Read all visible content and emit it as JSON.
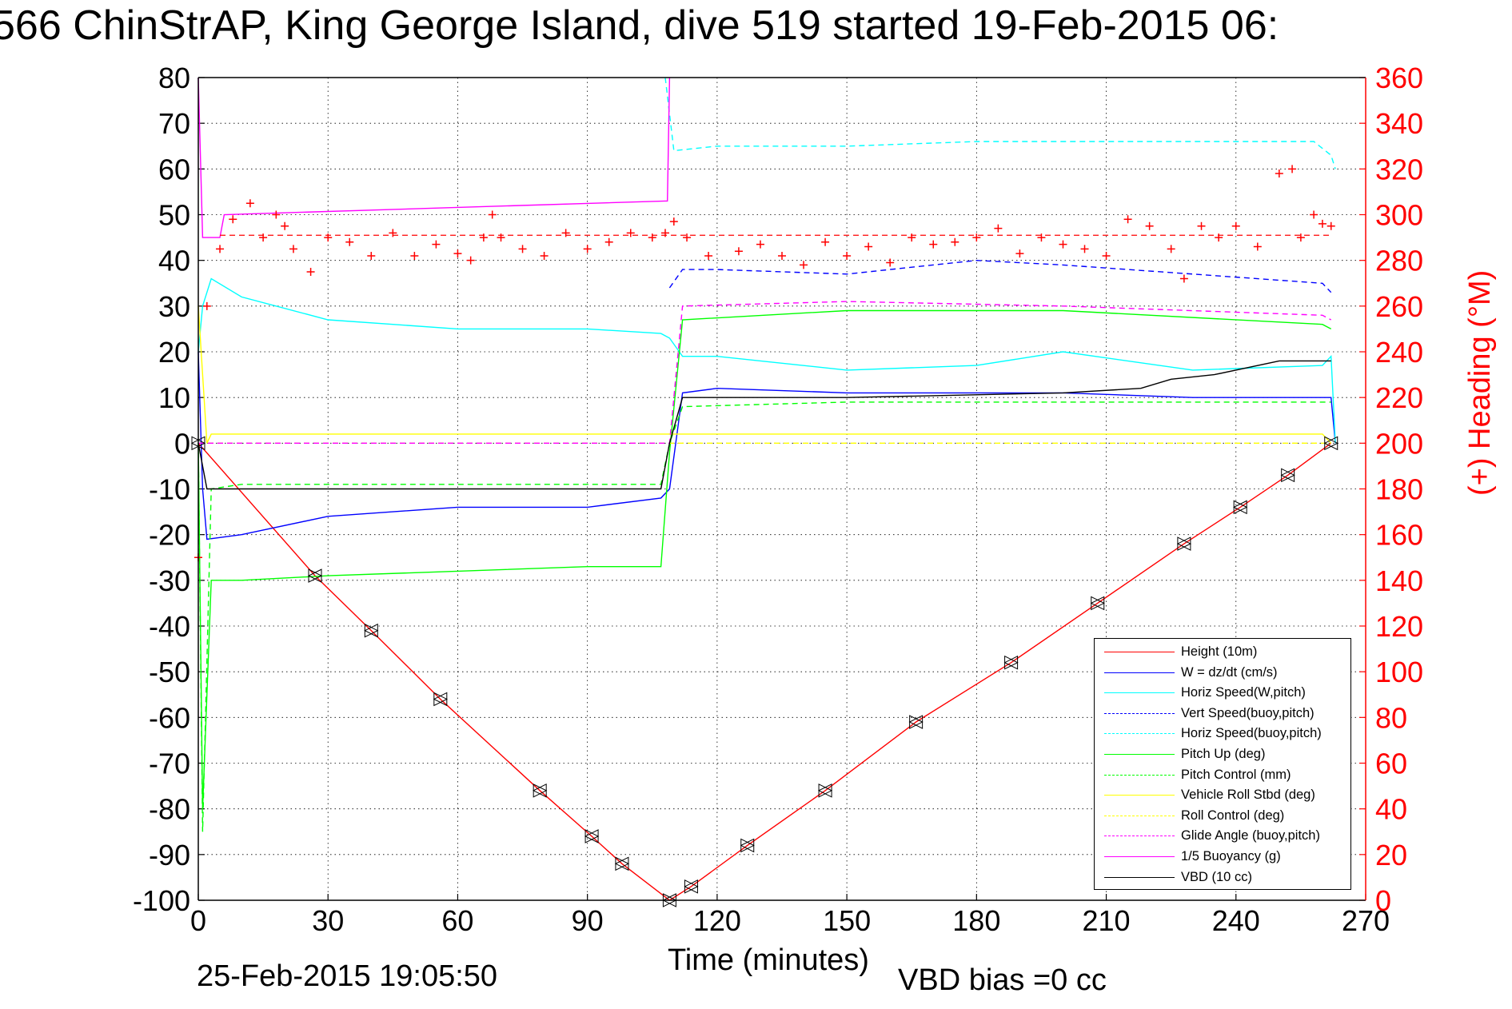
{
  "title": "566 ChinStrAP, King George Island, dive 519 started 19-Feb-2015 06:",
  "footer": {
    "date": "25-Feb-2015 19:05:50",
    "bias": "VBD bias =0 cc"
  },
  "chart_data": {
    "type": "line",
    "xlabel": "Time (minutes)",
    "ylabel_left": "",
    "ylabel_right": "(+) Heading (°M)",
    "xlim": [
      0,
      270
    ],
    "ylim": [
      -100,
      80
    ],
    "ylim_right": [
      0,
      360
    ],
    "xticks": [
      "0",
      "30",
      "60",
      "90",
      "120",
      "150",
      "180",
      "210",
      "240",
      "270"
    ],
    "yticks": [
      "80",
      "70",
      "60",
      "50",
      "40",
      "30",
      "20",
      "10",
      "0",
      "-10",
      "-20",
      "-30",
      "-40",
      "-50",
      "-60",
      "-70",
      "-80",
      "-90",
      "-100"
    ],
    "yticks_right": [
      "360",
      "340",
      "320",
      "300",
      "280",
      "260",
      "240",
      "220",
      "200",
      "180",
      "160",
      "140",
      "120",
      "100",
      "80",
      "60",
      "40",
      "20",
      "0"
    ],
    "grid": true,
    "legend_position": "bottom-right",
    "colors": {
      "height": "#ff0000",
      "w": "#0000ff",
      "horiz": "#00ffff",
      "vert_buoy": "#0000ff",
      "horiz_buoy": "#00ffff",
      "pitch": "#00ff00",
      "pitch_ctrl": "#00ff00",
      "roll": "#ffff00",
      "roll_ctrl": "#ffff00",
      "glide": "#ff00ff",
      "buoyancy": "#ff00ff",
      "vbd": "#000000",
      "heading": "#ff0000",
      "axis_right": "#ff0000"
    },
    "series": [
      {
        "name": "Height (10m)",
        "key": "height",
        "style": "solid",
        "x": [
          0,
          27,
          40,
          56,
          79,
          91,
          98,
          109,
          114,
          127,
          145,
          166,
          188,
          208,
          228,
          241,
          252,
          262
        ],
        "y": [
          0,
          -29,
          -41,
          -56,
          -76,
          -86,
          -92,
          -100,
          -97,
          -88,
          -76,
          -61,
          -48,
          -35,
          -22,
          -14,
          -7,
          0
        ]
      },
      {
        "name": "W = dz/dt (cm/s)",
        "key": "w",
        "style": "solid",
        "x": [
          0,
          1,
          2,
          10,
          30,
          60,
          90,
          107,
          109,
          112,
          120,
          150,
          180,
          200,
          230,
          260,
          262,
          263
        ],
        "y": [
          20,
          -10,
          -21,
          -20,
          -16,
          -14,
          -14,
          -12,
          -10,
          11,
          12,
          11,
          11,
          11,
          10,
          10,
          10,
          0
        ]
      },
      {
        "name": "Horiz Speed(W,pitch)",
        "key": "horiz",
        "style": "solid",
        "x": [
          0,
          1,
          3,
          10,
          30,
          60,
          90,
          107,
          109,
          112,
          120,
          150,
          180,
          200,
          230,
          260,
          262,
          263
        ],
        "y": [
          20,
          30,
          36,
          32,
          27,
          25,
          25,
          24,
          23,
          19,
          19,
          16,
          17,
          20,
          16,
          17,
          19,
          0
        ]
      },
      {
        "name": "Vert Speed(buoy,pitch)",
        "key": "vert_buoy",
        "style": "dashed",
        "x": [
          109,
          112,
          120,
          150,
          180,
          200,
          230,
          260,
          262
        ],
        "y": [
          34,
          38,
          38,
          37,
          40,
          39,
          37,
          35,
          33
        ]
      },
      {
        "name": "Horiz Speed(buoy,pitch)",
        "key": "horiz_buoy",
        "style": "dashed",
        "x": [
          108,
          110,
          120,
          150,
          180,
          210,
          240,
          258,
          262,
          263
        ],
        "y": [
          80,
          64,
          65,
          65,
          66,
          66,
          66,
          66,
          63,
          60
        ]
      },
      {
        "name": "Pitch Up (deg)",
        "key": "pitch",
        "style": "solid",
        "x": [
          0,
          1,
          3,
          10,
          30,
          60,
          90,
          107,
          109,
          112,
          150,
          200,
          260,
          262
        ],
        "y": [
          0,
          -80,
          -30,
          -30,
          -29,
          -28,
          -27,
          -27,
          -2,
          27,
          29,
          29,
          26,
          25
        ]
      },
      {
        "name": "Pitch Control (mm)",
        "key": "pitch_ctrl",
        "style": "dashed",
        "x": [
          0,
          1,
          3,
          10,
          60,
          107,
          109,
          112,
          150,
          200,
          260,
          262
        ],
        "y": [
          0,
          -85,
          -10,
          -9,
          -9,
          -9,
          0,
          8,
          9,
          9,
          9,
          9
        ]
      },
      {
        "name": "Vehicle Roll Stbd (deg)",
        "key": "roll",
        "style": "solid",
        "x": [
          0,
          2,
          3,
          30,
          60,
          90,
          107,
          109,
          150,
          200,
          260,
          262
        ],
        "y": [
          30,
          0,
          2,
          2,
          2,
          2,
          2,
          2,
          2,
          2,
          2,
          0
        ]
      },
      {
        "name": "Roll Control (deg)",
        "key": "roll_ctrl",
        "style": "dashed",
        "x": [
          0,
          262
        ],
        "y": [
          0,
          0
        ]
      },
      {
        "name": "Glide Angle (buoy,pitch)",
        "key": "glide",
        "style": "dashed",
        "x": [
          0,
          109,
          112,
          150,
          200,
          260,
          262
        ],
        "y": [
          0,
          0,
          30,
          31,
          30,
          28,
          27
        ]
      },
      {
        "name": "1/5 Buoyancy (g)",
        "key": "buoyancy",
        "style": "solid",
        "x": [
          0,
          1,
          2,
          5,
          6,
          108,
          108.5,
          109
        ],
        "y": [
          80,
          45,
          45,
          45,
          50,
          53,
          53,
          80
        ]
      },
      {
        "name": "VBD (10 cc)",
        "key": "vbd",
        "style": "solid",
        "x": [
          0,
          2,
          10,
          107,
          109,
          112,
          150,
          200,
          218,
          225,
          235,
          250,
          262
        ],
        "y": [
          0,
          -10,
          -10,
          -10,
          0,
          10,
          10,
          11,
          12,
          14,
          15,
          18,
          18
        ]
      }
    ],
    "heading_right_axis": {
      "name": "(+) Heading (°M)",
      "key": "heading",
      "x": [
        0,
        2,
        5,
        8,
        12,
        15,
        18,
        20,
        22,
        26,
        30,
        35,
        40,
        45,
        50,
        55,
        60,
        63,
        66,
        68,
        70,
        75,
        80,
        85,
        90,
        95,
        100,
        105,
        108,
        110,
        113,
        118,
        125,
        130,
        135,
        140,
        145,
        150,
        155,
        160,
        165,
        170,
        175,
        180,
        185,
        190,
        195,
        200,
        205,
        210,
        215,
        220,
        225,
        228,
        232,
        236,
        240,
        245,
        250,
        253,
        255,
        258,
        260,
        262
      ],
      "y": [
        150,
        260,
        285,
        298,
        305,
        290,
        300,
        295,
        285,
        275,
        290,
        288,
        282,
        292,
        282,
        287,
        283,
        280,
        290,
        300,
        290,
        285,
        282,
        292,
        285,
        288,
        292,
        290,
        292,
        297,
        290,
        282,
        284,
        287,
        282,
        278,
        288,
        282,
        286,
        279,
        290,
        287,
        288,
        290,
        294,
        283,
        290,
        287,
        285,
        282,
        298,
        295,
        285,
        272,
        295,
        290,
        295,
        286,
        318,
        320,
        290,
        300,
        296,
        295
      ]
    },
    "heading_reference": 291
  },
  "legend": [
    {
      "label": "Height (10m)",
      "key": "height",
      "style": "solid"
    },
    {
      "label": "W = dz/dt (cm/s)",
      "key": "w",
      "style": "solid"
    },
    {
      "label": "Horiz Speed(W,pitch)",
      "key": "horiz",
      "style": "solid"
    },
    {
      "label": "Vert Speed(buoy,pitch)",
      "key": "vert_buoy",
      "style": "dashed"
    },
    {
      "label": "Horiz Speed(buoy,pitch)",
      "key": "horiz_buoy",
      "style": "dashed"
    },
    {
      "label": "Pitch Up (deg)",
      "key": "pitch",
      "style": "solid"
    },
    {
      "label": "Pitch Control (mm)",
      "key": "pitch_ctrl",
      "style": "dashed"
    },
    {
      "label": "Vehicle Roll Stbd (deg)",
      "key": "roll",
      "style": "solid"
    },
    {
      "label": "Roll Control (deg)",
      "key": "roll_ctrl",
      "style": "dashed"
    },
    {
      "label": "Glide Angle (buoy,pitch)",
      "key": "glide",
      "style": "dashed"
    },
    {
      "label": "1/5 Buoyancy (g)",
      "key": "buoyancy",
      "style": "solid"
    },
    {
      "label": "VBD (10 cc)",
      "key": "vbd",
      "style": "solid"
    }
  ]
}
